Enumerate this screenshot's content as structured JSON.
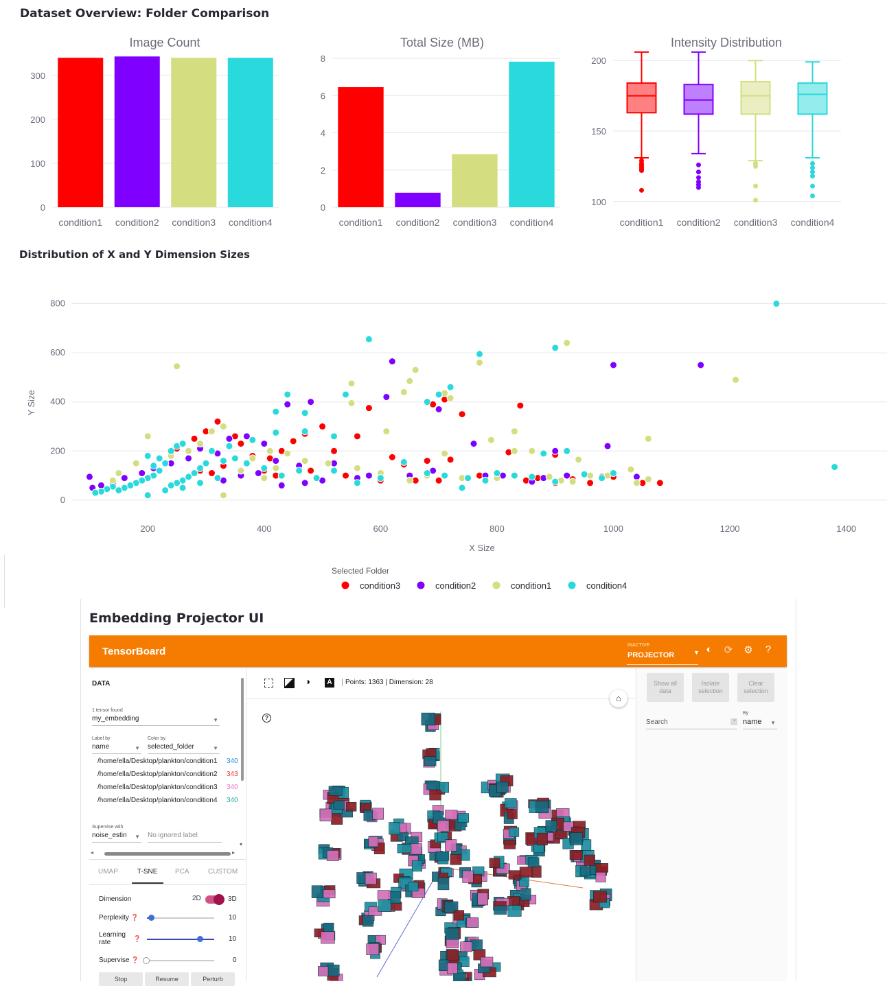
{
  "overview": {
    "title": "Dataset Overview: Folder Comparison"
  },
  "chart_data": [
    {
      "type": "bar",
      "title": "Image Count",
      "categories": [
        "condition1",
        "condition2",
        "condition3",
        "condition4"
      ],
      "values": [
        340,
        343,
        340,
        340
      ],
      "colors": [
        "#ff0000",
        "#8000ff",
        "#d4dd80",
        "#2ad9db"
      ],
      "yticks": [
        0,
        100,
        200,
        300
      ],
      "ylim": [
        0,
        345
      ]
    },
    {
      "type": "bar",
      "title": "Total Size (MB)",
      "categories": [
        "condition1",
        "condition2",
        "condition3",
        "condition4"
      ],
      "values": [
        6.45,
        0.78,
        2.85,
        7.82
      ],
      "colors": [
        "#ff0000",
        "#8000ff",
        "#d4dd80",
        "#2ad9db"
      ],
      "yticks": [
        0,
        2,
        4,
        6,
        8
      ],
      "ylim": [
        0,
        8
      ]
    },
    {
      "type": "box",
      "title": "Intensity Distribution",
      "categories": [
        "condition1",
        "condition2",
        "condition3",
        "condition4"
      ],
      "colors": [
        "#ff0000",
        "#8000ff",
        "#d4dd80",
        "#2ad9db"
      ],
      "fills": [
        "#ff8080",
        "#bf80ff",
        "#eaeec0",
        "#95eced"
      ],
      "yticks": [
        100,
        150,
        200
      ],
      "ylim": [
        96,
        204
      ],
      "boxes": [
        {
          "min": 131,
          "q1": 163,
          "median": 175,
          "q3": 184,
          "max": 206,
          "outliers": [
            129,
            127,
            126,
            125,
            124,
            123,
            122,
            108
          ]
        },
        {
          "min": 134,
          "q1": 162,
          "median": 172,
          "q3": 183,
          "max": 206,
          "outliers": [
            126,
            121,
            117,
            114,
            112,
            110
          ]
        },
        {
          "min": 129,
          "q1": 162,
          "median": 175,
          "q3": 185,
          "max": 200,
          "outliers": [
            127,
            125,
            111,
            101
          ]
        },
        {
          "min": 131,
          "q1": 162,
          "median": 176,
          "q3": 184,
          "max": 199,
          "outliers": [
            127,
            124,
            121,
            118,
            111,
            104
          ]
        }
      ]
    },
    {
      "type": "scatter",
      "title": "Distribution of X and Y Dimension Sizes",
      "xlabel": "X Size",
      "ylabel": "Y Size",
      "xticks": [
        200,
        400,
        600,
        800,
        1000,
        1200,
        1400
      ],
      "yticks": [
        0,
        200,
        400,
        600,
        800
      ],
      "xlim": [
        70,
        1470
      ],
      "ylim": [
        -45,
        835
      ],
      "legend_title": "Selected Folder",
      "series": [
        {
          "name": "condition3",
          "color": "#ff0000",
          "points": [
            [
              580,
              375
            ],
            [
              690,
              390
            ],
            [
              710,
              410
            ],
            [
              740,
              350
            ],
            [
              840,
              385
            ],
            [
              620,
              175
            ],
            [
              640,
              145
            ],
            [
              680,
              160
            ],
            [
              720,
              165
            ],
            [
              820,
              195
            ],
            [
              900,
              185
            ],
            [
              980,
              95
            ],
            [
              1000,
              95
            ],
            [
              1050,
              70
            ],
            [
              1080,
              70
            ],
            [
              560,
              260
            ],
            [
              520,
              200
            ],
            [
              470,
              270
            ],
            [
              500,
              300
            ],
            [
              450,
              240
            ],
            [
              430,
              200
            ],
            [
              410,
              170
            ],
            [
              380,
              180
            ],
            [
              360,
              230
            ],
            [
              350,
              260
            ],
            [
              320,
              320
            ],
            [
              300,
              280
            ],
            [
              280,
              250
            ],
            [
              250,
              210
            ],
            [
              330,
              140
            ],
            [
              310,
              110
            ],
            [
              290,
              120
            ],
            [
              400,
              120
            ],
            [
              420,
              100
            ],
            [
              480,
              120
            ],
            [
              540,
              100
            ],
            [
              600,
              80
            ],
            [
              660,
              80
            ],
            [
              700,
              80
            ],
            [
              770,
              100
            ],
            [
              850,
              80
            ],
            [
              870,
              90
            ],
            [
              900,
              70
            ],
            [
              930,
              85
            ],
            [
              960,
              70
            ]
          ]
        },
        {
          "name": "condition2",
          "color": "#8000ff",
          "points": [
            [
              620,
              565
            ],
            [
              1000,
              550
            ],
            [
              1150,
              550
            ],
            [
              610,
              420
            ],
            [
              700,
              370
            ],
            [
              480,
              400
            ],
            [
              440,
              390
            ],
            [
              760,
              230
            ],
            [
              990,
              220
            ],
            [
              900,
              200
            ],
            [
              810,
              100
            ],
            [
              860,
              75
            ],
            [
              880,
              90
            ],
            [
              920,
              100
            ],
            [
              1040,
              95
            ],
            [
              580,
              100
            ],
            [
              520,
              150
            ],
            [
              460,
              140
            ],
            [
              420,
              160
            ],
            [
              400,
              230
            ],
            [
              370,
              260
            ],
            [
              340,
              250
            ],
            [
              320,
              190
            ],
            [
              290,
              210
            ],
            [
              270,
              170
            ],
            [
              240,
              150
            ],
            [
              210,
              130
            ],
            [
              190,
              110
            ],
            [
              160,
              90
            ],
            [
              140,
              70
            ],
            [
              120,
              60
            ],
            [
              100,
              95
            ],
            [
              105,
              50
            ],
            [
              330,
              80
            ],
            [
              360,
              100
            ],
            [
              390,
              110
            ],
            [
              430,
              60
            ],
            [
              470,
              70
            ],
            [
              500,
              80
            ],
            [
              560,
              90
            ],
            [
              650,
              100
            ],
            [
              690,
              120
            ],
            [
              740,
              90
            ],
            [
              780,
              100
            ]
          ]
        },
        {
          "name": "condition1",
          "color": "#d4dd80",
          "points": [
            [
              250,
              545
            ],
            [
              660,
              530
            ],
            [
              920,
              640
            ],
            [
              1210,
              490
            ],
            [
              770,
              560
            ],
            [
              650,
              485
            ],
            [
              640,
              440
            ],
            [
              550,
              475
            ],
            [
              550,
              395
            ],
            [
              610,
              280
            ],
            [
              720,
              415
            ],
            [
              710,
              435
            ],
            [
              790,
              245
            ],
            [
              830,
              200
            ],
            [
              830,
              280
            ],
            [
              860,
              200
            ],
            [
              940,
              165
            ],
            [
              1060,
              250
            ],
            [
              1030,
              125
            ],
            [
              1060,
              85
            ],
            [
              1040,
              70
            ],
            [
              990,
              100
            ],
            [
              960,
              100
            ],
            [
              930,
              75
            ],
            [
              910,
              80
            ],
            [
              890,
              95
            ],
            [
              800,
              90
            ],
            [
              710,
              190
            ],
            [
              680,
              100
            ],
            [
              330,
              300
            ],
            [
              310,
              280
            ],
            [
              290,
              230
            ],
            [
              270,
              200
            ],
            [
              240,
              180
            ],
            [
              200,
              260
            ],
            [
              180,
              150
            ],
            [
              150,
              110
            ],
            [
              140,
              80
            ],
            [
              330,
              20
            ],
            [
              380,
              170
            ],
            [
              410,
              200
            ],
            [
              440,
              190
            ],
            [
              470,
              160
            ],
            [
              510,
              150
            ],
            [
              560,
              130
            ],
            [
              600,
              110
            ],
            [
              650,
              80
            ],
            [
              740,
              90
            ],
            [
              360,
              120
            ],
            [
              400,
              90
            ],
            [
              420,
              130
            ]
          ]
        },
        {
          "name": "condition4",
          "color": "#2ad9db",
          "points": [
            [
              1280,
              800
            ],
            [
              580,
              655
            ],
            [
              770,
              595
            ],
            [
              900,
              620
            ],
            [
              1380,
              135
            ],
            [
              440,
              430
            ],
            [
              420,
              360
            ],
            [
              470,
              355
            ],
            [
              540,
              430
            ],
            [
              520,
              260
            ],
            [
              470,
              280
            ],
            [
              420,
              275
            ],
            [
              380,
              245
            ],
            [
              340,
              220
            ],
            [
              720,
              460
            ],
            [
              700,
              430
            ],
            [
              680,
              400
            ],
            [
              640,
              155
            ],
            [
              680,
              110
            ],
            [
              710,
              100
            ],
            [
              750,
              90
            ],
            [
              800,
              110
            ],
            [
              830,
              100
            ],
            [
              880,
              190
            ],
            [
              920,
              200
            ],
            [
              950,
              105
            ],
            [
              980,
              90
            ],
            [
              1000,
              110
            ],
            [
              900,
              75
            ],
            [
              860,
              95
            ],
            [
              780,
              80
            ],
            [
              740,
              50
            ],
            [
              600,
              90
            ],
            [
              560,
              70
            ],
            [
              520,
              120
            ],
            [
              490,
              90
            ],
            [
              460,
              120
            ],
            [
              430,
              100
            ],
            [
              400,
              130
            ],
            [
              370,
              150
            ],
            [
              350,
              170
            ],
            [
              330,
              160
            ],
            [
              310,
              200
            ],
            [
              300,
              150
            ],
            [
              290,
              130
            ],
            [
              280,
              110
            ],
            [
              270,
              95
            ],
            [
              260,
              80
            ],
            [
              250,
              70
            ],
            [
              240,
              60
            ],
            [
              230,
              150
            ],
            [
              220,
              120
            ],
            [
              210,
              100
            ],
            [
              200,
              90
            ],
            [
              190,
              80
            ],
            [
              180,
              70
            ],
            [
              170,
              60
            ],
            [
              160,
              50
            ],
            [
              150,
              40
            ],
            [
              140,
              55
            ],
            [
              130,
              45
            ],
            [
              120,
              35
            ],
            [
              110,
              30
            ],
            [
              200,
              20
            ],
            [
              230,
              40
            ],
            [
              260,
              50
            ],
            [
              290,
              70
            ],
            [
              320,
              90
            ],
            [
              240,
              200
            ],
            [
              250,
              220
            ],
            [
              260,
              230
            ],
            [
              200,
              180
            ],
            [
              210,
              140
            ],
            [
              220,
              170
            ]
          ]
        }
      ]
    }
  ],
  "section2": {
    "title": "Distribution of X and Y Dimension Sizes"
  },
  "projector": {
    "section_title": "Embedding Projector UI",
    "brand": "TensorBoard",
    "selector_small": "INACTIVE",
    "selector_big": "PROJECTOR",
    "data_heading": "DATA",
    "tensor_found": "1 tensor found",
    "tensor_name": "my_embedding",
    "label_by_label": "Label by",
    "label_by_value": "name",
    "color_by_label": "Color by",
    "color_by_value": "selected_folder",
    "folders": [
      {
        "path": "/home/ella/Desktop/plankton/condition1",
        "count": "340",
        "color": "#1e88e5"
      },
      {
        "path": "/home/ella/Desktop/plankton/condition2",
        "count": "343",
        "color": "#e53935"
      },
      {
        "path": "/home/ella/Desktop/plankton/condition3",
        "count": "340",
        "color": "#ec6fc6"
      },
      {
        "path": "/home/ella/Desktop/plankton/condition4",
        "count": "340",
        "color": "#26a69a"
      }
    ],
    "supervise_label": "Supervise with",
    "supervise_value": "noise_estin",
    "ignored_placeholder": "No ignored label",
    "tabs": [
      "UMAP",
      "T-SNE",
      "PCA",
      "CUSTOM"
    ],
    "dimension_label": "Dimension",
    "dim_2d": "2D",
    "dim_3d": "3D",
    "perplexity_label": "Perplexity",
    "perplexity_value": "10",
    "learning_rate_label": "Learning rate",
    "learning_rate_value": "10",
    "supervise_slider_label": "Supervise",
    "supervise_slider_value": "0",
    "buttons": [
      "Stop",
      "Resume",
      "Perturb"
    ],
    "status": "Points: 1363 | Dimension: 28",
    "show_all": "Show all data",
    "isolate": "Isolate selection",
    "clear": "Clear selection",
    "search_label": "Search",
    "by_label": "By",
    "by_value": "name"
  }
}
